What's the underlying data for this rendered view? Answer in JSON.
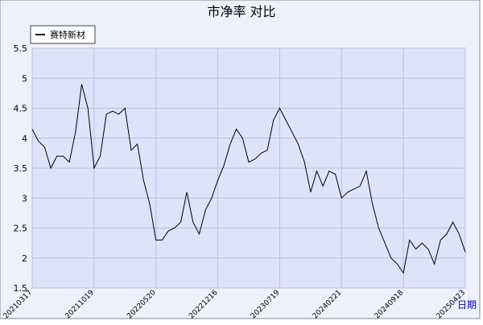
{
  "chart_data": {
    "type": "line",
    "title": "市净率  对比",
    "x_label": "日期",
    "categories": [
      "20210317",
      null,
      null,
      null,
      null,
      null,
      null,
      null,
      null,
      null,
      "20211019",
      null,
      null,
      null,
      null,
      null,
      null,
      null,
      null,
      null,
      "20220520",
      null,
      null,
      null,
      null,
      null,
      null,
      null,
      null,
      null,
      "20221216",
      null,
      null,
      null,
      null,
      null,
      null,
      null,
      null,
      null,
      "20230719",
      null,
      null,
      null,
      null,
      null,
      null,
      null,
      null,
      null,
      "20240221",
      null,
      null,
      null,
      null,
      null,
      null,
      null,
      null,
      null,
      "20240918",
      null,
      null,
      null,
      null,
      null,
      null,
      null,
      null,
      null,
      "20250423"
    ],
    "series": [
      {
        "name": "赛特新材",
        "color": "#000000",
        "values": [
          4.15,
          3.95,
          3.85,
          3.5,
          3.7,
          3.7,
          3.6,
          4.1,
          4.9,
          4.5,
          3.5,
          3.7,
          4.4,
          4.45,
          4.4,
          4.5,
          3.8,
          3.9,
          3.3,
          2.9,
          2.3,
          2.3,
          2.45,
          2.5,
          2.6,
          3.1,
          2.6,
          2.4,
          2.8,
          3.0,
          3.3,
          3.55,
          3.9,
          4.15,
          4.0,
          3.6,
          3.65,
          3.75,
          3.8,
          4.3,
          4.5,
          4.3,
          4.1,
          3.9,
          3.6,
          3.1,
          3.45,
          3.2,
          3.45,
          3.4,
          3.0,
          3.1,
          3.15,
          3.2,
          3.45,
          2.9,
          2.5,
          2.25,
          2.0,
          1.9,
          1.75,
          2.3,
          2.15,
          2.25,
          2.15,
          1.9,
          2.3,
          2.4,
          2.6,
          2.4,
          2.1
        ]
      }
    ],
    "ylim": [
      1.5,
      5.5
    ],
    "yticks": [
      1.5,
      2.0,
      2.5,
      3.0,
      3.5,
      4.0,
      4.5,
      5.0,
      5.5
    ],
    "grid": true,
    "legend": "top-left"
  }
}
